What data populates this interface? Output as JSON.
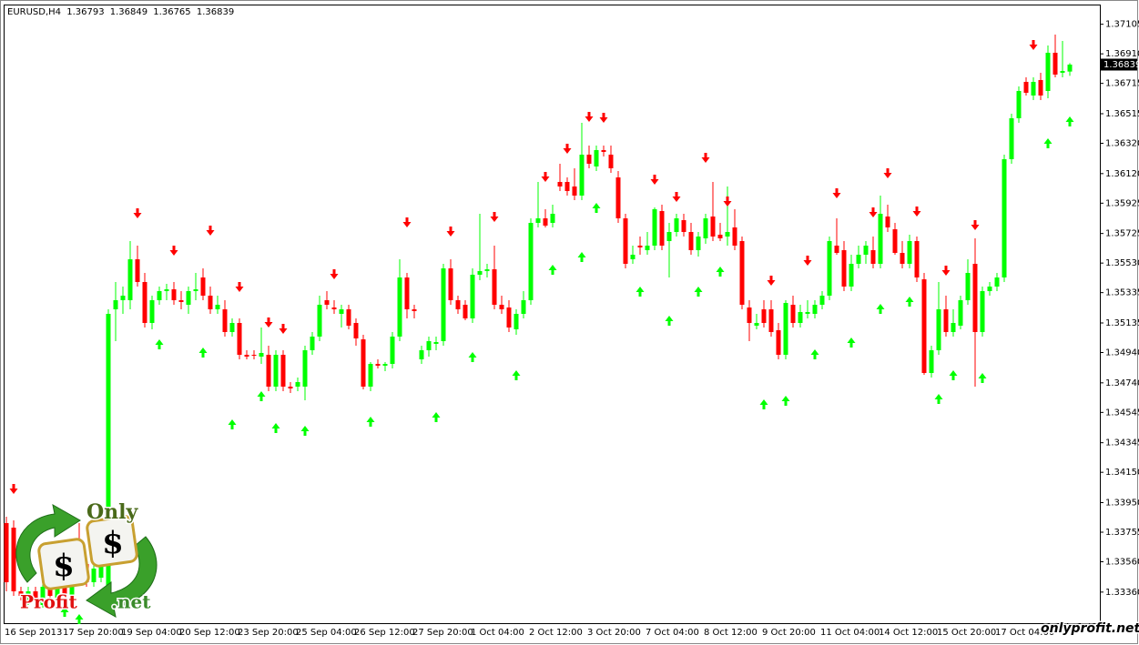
{
  "chart_data": {
    "type": "candlestick",
    "symbol": "EURUSD,H4",
    "bull_color": "#00ff00",
    "bear_color": "#ff0000",
    "categories": [
      "16 Sep 2013",
      null,
      null,
      null,
      null,
      null,
      null,
      null,
      "17 Sep 20:00",
      null,
      null,
      null,
      null,
      null,
      null,
      null,
      "19 Sep 04:00",
      null,
      null,
      null,
      null,
      null,
      null,
      null,
      "20 Sep 12:00",
      null,
      null,
      null,
      null,
      null,
      null,
      null,
      "23 Sep 20:00",
      null,
      null,
      null,
      null,
      null,
      null,
      null,
      "25 Sep 04:00",
      null,
      null,
      null,
      null,
      null,
      null,
      null,
      "26 Sep 12:00",
      null,
      null,
      null,
      null,
      null,
      null,
      null,
      "27 Sep 20:00",
      null,
      null,
      null,
      null,
      null,
      null,
      null,
      "1 Oct 04:00",
      null,
      null,
      null,
      null,
      null,
      null,
      null,
      "2 Oct 12:00",
      null,
      null,
      null,
      null,
      null,
      null,
      null,
      "3 Oct 20:00",
      null,
      null,
      null,
      null,
      null,
      null,
      null,
      "7 Oct 04:00",
      null,
      null,
      null,
      null,
      null,
      null,
      null,
      "8 Oct 12:00",
      null,
      null,
      null,
      null,
      null,
      null,
      null,
      "9 Oct 20:00",
      null,
      null,
      null,
      null,
      null,
      null,
      null,
      "11 Oct 04:00",
      null,
      null,
      null,
      null,
      null,
      null,
      null,
      "14 Oct 12:00",
      null,
      null,
      null,
      null,
      null,
      null,
      null,
      "15 Oct 20:00",
      null,
      null,
      null,
      null,
      null,
      null,
      null,
      "17 Oct 04:00",
      null,
      null,
      null,
      null,
      null,
      null,
      null,
      null,
      null,
      null
    ],
    "open": [
      1.33815,
      1.33785,
      1.33365,
      1.33305,
      1.33365,
      1.33275,
      1.33395,
      1.33305,
      1.33425,
      1.33305,
      1.33695,
      1.33545,
      1.33425,
      1.33455,
      1.33365,
      1.35225,
      1.35285,
      1.35285,
      1.35555,
      1.35405,
      1.35135,
      1.35285,
      1.35345,
      1.35357,
      1.35285,
      1.35255,
      1.35345,
      1.35435,
      1.35315,
      1.35225,
      1.35225,
      1.35075,
      1.35135,
      1.34925,
      1.34925,
      1.34913,
      1.34925,
      1.34715,
      1.34925,
      1.34715,
      1.34715,
      1.34715,
      1.34955,
      1.35045,
      1.35285,
      1.35237,
      1.35195,
      1.35225,
      1.35135,
      1.35027,
      1.34715,
      1.34865,
      1.34853,
      1.34865,
      1.35045,
      1.35435,
      1.35225,
      1.34895,
      1.34955,
      1.34997,
      1.35015,
      1.35495,
      1.35285,
      1.35255,
      1.35165,
      1.35453,
      1.35477,
      1.35489,
      1.35255,
      1.35237,
      1.35093,
      1.35195,
      1.35285,
      1.35795,
      1.35825,
      1.35795,
      1.36065,
      1.36065,
      1.36035,
      1.35975,
      1.36245,
      1.36167,
      1.36275,
      1.36245,
      1.36095,
      1.35825,
      1.35555,
      1.35645,
      1.35615,
      1.35645,
      1.35873,
      1.35675,
      1.35735,
      1.35813,
      1.35735,
      1.35615,
      1.35693,
      1.35837,
      1.35717,
      1.35705,
      1.35765,
      1.35675,
      1.35237,
      1.35117,
      1.35225,
      1.35225,
      1.35087,
      1.34925,
      1.35255,
      1.35135,
      1.35195,
      1.35195,
      1.35255,
      1.35315,
      1.35645,
      1.35615,
      1.35375,
      1.35525,
      1.35585,
      1.35615,
      1.35525,
      1.35837,
      1.35753,
      1.35597,
      1.35525,
      1.35675,
      1.35423,
      1.34805,
      1.34955,
      1.35225,
      1.35075,
      1.35117,
      1.35285,
      1.35525,
      1.35075,
      1.35345,
      1.35375,
      1.35435,
      1.36215,
      1.36485,
      1.36725,
      1.36635,
      1.36737,
      1.36665,
      1.36917,
      1.36785,
      1.36793
    ],
    "high": [
      1.33857,
      1.33833,
      1.33395,
      1.33395,
      1.33395,
      1.33425,
      1.33425,
      1.33455,
      1.33455,
      1.33455,
      1.33815,
      1.33593,
      1.33557,
      1.33593,
      1.35225,
      1.35405,
      1.35375,
      1.35675,
      1.35645,
      1.35465,
      1.35315,
      1.35375,
      1.35393,
      1.35405,
      1.35345,
      1.35375,
      1.35465,
      1.35495,
      1.35375,
      1.35315,
      1.35285,
      1.35165,
      1.35165,
      1.34955,
      1.34955,
      1.35105,
      1.34985,
      1.34955,
      1.34955,
      1.34745,
      1.34775,
      1.34985,
      1.35075,
      1.35315,
      1.35345,
      1.35285,
      1.35255,
      1.35255,
      1.35165,
      1.35057,
      1.34877,
      1.34895,
      1.34877,
      1.35075,
      1.35555,
      1.35465,
      1.35255,
      1.34985,
      1.35045,
      1.35045,
      1.35525,
      1.35555,
      1.35315,
      1.35285,
      1.35495,
      1.35855,
      1.35525,
      1.35645,
      1.35315,
      1.35285,
      1.35225,
      1.35345,
      1.35825,
      1.36065,
      1.35885,
      1.35915,
      1.36185,
      1.36095,
      1.36155,
      1.36455,
      1.36305,
      1.36305,
      1.36305,
      1.36305,
      1.36137,
      1.35855,
      1.35645,
      1.35705,
      1.35735,
      1.35897,
      1.35915,
      1.35795,
      1.35855,
      1.35855,
      1.35795,
      1.35735,
      1.35855,
      1.36065,
      1.35795,
      1.36035,
      1.35885,
      1.35705,
      1.35285,
      1.35195,
      1.35285,
      1.35285,
      1.35135,
      1.35285,
      1.35315,
      1.35255,
      1.35285,
      1.35285,
      1.35345,
      1.35705,
      1.35825,
      1.35675,
      1.35585,
      1.35645,
      1.35675,
      1.35705,
      1.35975,
      1.35915,
      1.35795,
      1.35675,
      1.35717,
      1.35705,
      1.35465,
      1.34985,
      1.35405,
      1.35315,
      1.35225,
      1.35315,
      1.35555,
      1.35693,
      1.35375,
      1.35405,
      1.35465,
      1.36245,
      1.36515,
      1.36695,
      1.36755,
      1.36755,
      1.36785,
      1.36965,
      1.37037,
      1.36995,
      1.36849
    ],
    "low": [
      1.33365,
      1.33335,
      1.33305,
      1.33275,
      1.33293,
      1.33257,
      1.33305,
      1.33275,
      1.33305,
      1.33275,
      1.33413,
      1.33395,
      1.33395,
      1.33425,
      1.33335,
      1.35015,
      1.35195,
      1.35225,
      1.35375,
      1.35105,
      1.35093,
      1.35255,
      1.35285,
      1.35255,
      1.35225,
      1.35195,
      1.35285,
      1.35285,
      1.35195,
      1.35195,
      1.35045,
      1.35045,
      1.34895,
      1.34895,
      1.34895,
      1.34865,
      1.34685,
      1.34685,
      1.34685,
      1.34673,
      1.34685,
      1.34625,
      1.34925,
      1.35015,
      1.35225,
      1.35195,
      1.35105,
      1.35093,
      1.34985,
      1.34697,
      1.34685,
      1.34835,
      1.34817,
      1.34835,
      1.35015,
      1.35165,
      1.35165,
      1.34865,
      1.34913,
      1.34955,
      1.34985,
      1.35255,
      1.35195,
      1.35153,
      1.35135,
      1.35417,
      1.35435,
      1.35225,
      1.35195,
      1.35075,
      1.35057,
      1.35165,
      1.35255,
      1.35765,
      1.35765,
      1.35765,
      1.36005,
      1.35975,
      1.35945,
      1.35945,
      1.36155,
      1.36137,
      1.36233,
      1.36125,
      1.35795,
      1.35495,
      1.35525,
      1.35585,
      1.35585,
      1.35615,
      1.35615,
      1.35435,
      1.35705,
      1.35705,
      1.35585,
      1.35573,
      1.35657,
      1.35675,
      1.35675,
      1.35645,
      1.35615,
      1.35225,
      1.35015,
      1.35093,
      1.35105,
      1.35045,
      1.34895,
      1.34895,
      1.35105,
      1.35105,
      1.35165,
      1.35165,
      1.35225,
      1.35285,
      1.35585,
      1.35345,
      1.35345,
      1.35495,
      1.35525,
      1.35495,
      1.35495,
      1.35735,
      1.35585,
      1.35495,
      1.35495,
      1.35405,
      1.34793,
      1.34775,
      1.34925,
      1.35045,
      1.35045,
      1.35093,
      1.35255,
      1.34715,
      1.35045,
      1.35315,
      1.35345,
      1.35405,
      1.36185,
      1.36455,
      1.36635,
      1.36605,
      1.36605,
      1.36617,
      1.36755,
      1.36755,
      1.36765
    ],
    "close": [
      1.33425,
      1.33365,
      1.33335,
      1.33365,
      1.33305,
      1.33395,
      1.33335,
      1.33425,
      1.33335,
      1.33425,
      1.33455,
      1.33425,
      1.33515,
      1.33545,
      1.35195,
      1.35285,
      1.35315,
      1.35555,
      1.35405,
      1.35135,
      1.35285,
      1.35345,
      1.35357,
      1.35285,
      1.35273,
      1.35345,
      1.35357,
      1.35315,
      1.35225,
      1.35255,
      1.35075,
      1.35135,
      1.34925,
      1.34913,
      1.34919,
      1.34937,
      1.34715,
      1.34925,
      1.34715,
      1.34703,
      1.34745,
      1.34955,
      1.35045,
      1.35255,
      1.35255,
      1.35225,
      1.35225,
      1.35117,
      1.35033,
      1.34715,
      1.34865,
      1.34853,
      1.34865,
      1.35045,
      1.35435,
      1.35225,
      1.35213,
      1.34955,
      1.35015,
      1.35009,
      1.35495,
      1.35285,
      1.35225,
      1.35165,
      1.35453,
      1.35477,
      1.35489,
      1.35255,
      1.35225,
      1.35105,
      1.35195,
      1.35285,
      1.35795,
      1.35825,
      1.35777,
      1.35855,
      1.36035,
      1.36005,
      1.35975,
      1.36245,
      1.36185,
      1.36275,
      1.36263,
      1.36155,
      1.35825,
      1.35525,
      1.35585,
      1.35633,
      1.35645,
      1.35885,
      1.35645,
      1.35735,
      1.35825,
      1.35735,
      1.35615,
      1.35705,
      1.35825,
      1.35705,
      1.35693,
      1.35735,
      1.35645,
      1.35255,
      1.35135,
      1.35135,
      1.35135,
      1.35075,
      1.34925,
      1.35267,
      1.35135,
      1.35207,
      1.35207,
      1.35255,
      1.35315,
      1.35675,
      1.35597,
      1.35375,
      1.35525,
      1.35585,
      1.35645,
      1.35525,
      1.35855,
      1.35765,
      1.35597,
      1.35525,
      1.35675,
      1.35435,
      1.34805,
      1.34955,
      1.35225,
      1.35075,
      1.35135,
      1.35285,
      1.35465,
      1.35075,
      1.35345,
      1.35375,
      1.35435,
      1.36215,
      1.36485,
      1.36665,
      1.36653,
      1.36725,
      1.36635,
      1.36917,
      1.36773,
      1.36797,
      1.36839
    ],
    "sell_signals": {
      "color": "#ff0000",
      "x": [
        1,
        18,
        23,
        28,
        32,
        36,
        38,
        45,
        55,
        61,
        67,
        74,
        77,
        80,
        82,
        89,
        92,
        96,
        99,
        105,
        110,
        114,
        119,
        121,
        125,
        129,
        133,
        141
      ],
      "values": [
        1.34037,
        1.35855,
        1.35609,
        1.35741,
        1.35369,
        1.35135,
        1.35093,
        1.35453,
        1.35795,
        1.35735,
        1.35831,
        1.36095,
        1.36281,
        1.36491,
        1.36485,
        1.36077,
        1.35963,
        1.36221,
        1.35933,
        1.35411,
        1.35543,
        1.35987,
        1.35861,
        1.36119,
        1.35867,
        1.35477,
        1.35777,
        1.36965
      ]
    },
    "buy_signals": {
      "color": "#00ff00",
      "x": [
        8,
        10,
        21,
        27,
        31,
        35,
        37,
        41,
        50,
        59,
        64,
        70,
        75,
        79,
        81,
        87,
        91,
        95,
        98,
        104,
        107,
        111,
        116,
        120,
        124,
        128,
        130,
        134,
        143,
        146
      ],
      "values": [
        1.33233,
        1.33185,
        1.34997,
        1.34943,
        1.34469,
        1.34655,
        1.34445,
        1.34427,
        1.34487,
        1.34517,
        1.34913,
        1.34793,
        1.35489,
        1.35573,
        1.35897,
        1.35345,
        1.35153,
        1.35345,
        1.35477,
        1.34601,
        1.34625,
        1.34931,
        1.35009,
        1.35231,
        1.35279,
        1.34637,
        1.34793,
        1.34775,
        1.36323,
        1.36467
      ]
    },
    "ylim": [
      1.33155,
      1.37235
    ],
    "yticks": [
      1.37105,
      {
        "value": 1.3691,
        "label": "1.36910"
      },
      1.36715,
      1.36515,
      {
        "value": 1.3632,
        "label": "1.36320"
      },
      {
        "value": 1.3612,
        "label": "1.36120"
      },
      1.35925,
      1.35725,
      {
        "value": 1.3553,
        "label": "1.35530"
      },
      1.35335,
      1.35135,
      {
        "value": 1.3494,
        "label": "1.34940"
      },
      {
        "value": 1.3474,
        "label": "1.34740"
      },
      1.34545,
      1.34345,
      {
        "value": 1.3415,
        "label": "1.34150"
      },
      {
        "value": 1.3395,
        "label": "1.33950"
      },
      1.33755,
      {
        "value": 1.3356,
        "label": "1.33560"
      },
      {
        "value": 1.3336,
        "label": "1.33360"
      }
    ],
    "grid": false
  },
  "logo": {
    "top": "Only",
    "symbol": "$",
    "bottom": "Profit",
    "suffix": ".net"
  },
  "watermark": "onlyprofit.net"
}
